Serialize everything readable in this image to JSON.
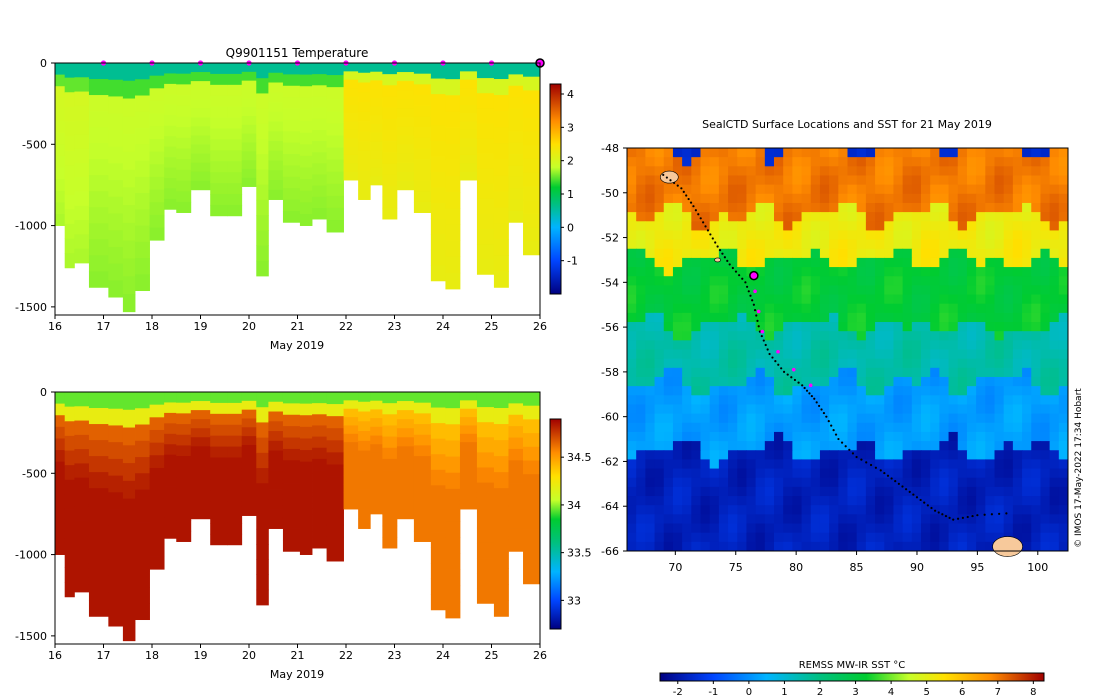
{
  "colors": {
    "frame": "#000000",
    "profile_marker": "#ff00ff",
    "current_marker_fill": "#ff00ff",
    "current_marker_stroke": "#000000",
    "land": "#f7c99b"
  },
  "chart_data": [
    {
      "id": "temperature",
      "type": "heatmap",
      "title": "Q9901151  Temperature",
      "xlabel": "May 2019",
      "ylabel": "",
      "xlim": [
        16,
        26
      ],
      "ylim": [
        -1550,
        0
      ],
      "x_ticks": [
        "16",
        "17",
        "18",
        "19",
        "20",
        "21",
        "22",
        "23",
        "24",
        "25",
        "26"
      ],
      "y_ticks": [
        "0",
        "-500",
        "-1000",
        "-1500"
      ],
      "y_tick_values": [
        0,
        -500,
        -1000,
        -1500
      ],
      "colorbar": {
        "min": -2,
        "max": 4.3,
        "ticks": [
          "4",
          "3",
          "2",
          "1",
          "0",
          "-1"
        ],
        "tick_values": [
          4,
          3,
          2,
          1,
          0,
          -1
        ],
        "stops": [
          {
            "v": -2.0,
            "c": "#000080"
          },
          {
            "v": -1.0,
            "c": "#0045ff"
          },
          {
            "v": 0.0,
            "c": "#00b4ff"
          },
          {
            "v": 0.7,
            "c": "#00c080"
          },
          {
            "v": 1.2,
            "c": "#00cc30"
          },
          {
            "v": 1.8,
            "c": "#c6ff2a"
          },
          {
            "v": 2.5,
            "c": "#ffe000"
          },
          {
            "v": 3.2,
            "c": "#ff8c00"
          },
          {
            "v": 4.3,
            "c": "#a00000"
          }
        ]
      },
      "profile_days": [
        17,
        18,
        19,
        20,
        21,
        22,
        23,
        24,
        25
      ],
      "current_day": 26,
      "surface_value": 0.6,
      "profiles": [
        {
          "day": 16.1,
          "depth": 1000,
          "value": 2.0
        },
        {
          "day": 16.3,
          "depth": 1260,
          "value": 2.0
        },
        {
          "day": 16.5,
          "depth": 1230,
          "value": 2.0
        },
        {
          "day": 16.9,
          "depth": 1380,
          "value": 1.9
        },
        {
          "day": 17.3,
          "depth": 1440,
          "value": 1.9
        },
        {
          "day": 17.5,
          "depth": 1530,
          "value": 1.9
        },
        {
          "day": 17.8,
          "depth": 1400,
          "value": 1.9
        },
        {
          "day": 18.1,
          "depth": 1090,
          "value": 1.9
        },
        {
          "day": 18.4,
          "depth": 900,
          "value": 1.9
        },
        {
          "day": 18.6,
          "depth": 920,
          "value": 1.9
        },
        {
          "day": 19.0,
          "depth": 780,
          "value": 1.9
        },
        {
          "day": 19.4,
          "depth": 940,
          "value": 1.9
        },
        {
          "day": 19.7,
          "depth": 940,
          "value": 1.9
        },
        {
          "day": 20.0,
          "depth": 760,
          "value": 1.9
        },
        {
          "day": 20.3,
          "depth": 1310,
          "value": 1.9
        },
        {
          "day": 20.5,
          "depth": 840,
          "value": 1.9
        },
        {
          "day": 20.9,
          "depth": 980,
          "value": 1.9
        },
        {
          "day": 21.2,
          "depth": 1000,
          "value": 1.9
        },
        {
          "day": 21.4,
          "depth": 960,
          "value": 1.9
        },
        {
          "day": 21.8,
          "depth": 1040,
          "value": 1.9
        },
        {
          "day": 22.1,
          "depth": 720,
          "value": 2.5
        },
        {
          "day": 22.4,
          "depth": 840,
          "value": 2.5
        },
        {
          "day": 22.6,
          "depth": 750,
          "value": 2.5
        },
        {
          "day": 22.9,
          "depth": 960,
          "value": 2.5
        },
        {
          "day": 23.2,
          "depth": 780,
          "value": 2.5
        },
        {
          "day": 23.6,
          "depth": 920,
          "value": 2.5
        },
        {
          "day": 23.9,
          "depth": 1340,
          "value": 2.5
        },
        {
          "day": 24.2,
          "depth": 1390,
          "value": 2.5
        },
        {
          "day": 24.5,
          "depth": 720,
          "value": 2.5
        },
        {
          "day": 24.9,
          "depth": 1300,
          "value": 2.5
        },
        {
          "day": 25.2,
          "depth": 1380,
          "value": 2.5
        },
        {
          "day": 25.5,
          "depth": 980,
          "value": 2.5
        },
        {
          "day": 25.8,
          "depth": 1180,
          "value": 2.5
        }
      ]
    },
    {
      "id": "salinity",
      "type": "heatmap",
      "title": "",
      "xlabel": "May 2019",
      "ylabel": "",
      "xlim": [
        16,
        26
      ],
      "ylim": [
        -1550,
        0
      ],
      "x_ticks": [
        "16",
        "17",
        "18",
        "19",
        "20",
        "21",
        "22",
        "23",
        "24",
        "25",
        "26"
      ],
      "y_ticks": [
        "0",
        "-500",
        "-1000",
        "-1500"
      ],
      "y_tick_values": [
        0,
        -500,
        -1000,
        -1500
      ],
      "colorbar": {
        "min": 32.7,
        "max": 34.9,
        "ticks": [
          "34.5",
          "34",
          "33.5",
          "33"
        ],
        "tick_values": [
          34.5,
          34,
          33.5,
          33
        ],
        "stops": [
          {
            "v": 32.7,
            "c": "#000080"
          },
          {
            "v": 33.0,
            "c": "#0045ff"
          },
          {
            "v": 33.3,
            "c": "#00b4ff"
          },
          {
            "v": 33.6,
            "c": "#00c080"
          },
          {
            "v": 33.85,
            "c": "#00cc30"
          },
          {
            "v": 34.05,
            "c": "#c6ff2a"
          },
          {
            "v": 34.3,
            "c": "#ffe000"
          },
          {
            "v": 34.55,
            "c": "#ff8c00"
          },
          {
            "v": 34.9,
            "c": "#a00000"
          }
        ]
      },
      "surface_value": 33.85,
      "deep_value_early": 34.85,
      "deep_value_late": 34.6
    },
    {
      "id": "sst-map",
      "type": "heatmap",
      "title": "SealCTD Surface Locations and SST for 21 May 2019",
      "xlabel": "",
      "ylabel": "",
      "xlim": [
        66,
        102.5
      ],
      "ylim": [
        -66,
        -48
      ],
      "x_ticks": [
        "70",
        "75",
        "80",
        "85",
        "90",
        "95",
        "100"
      ],
      "x_tick_values": [
        70,
        75,
        80,
        85,
        90,
        95,
        100
      ],
      "y_ticks": [
        "-48",
        "-50",
        "-52",
        "-54",
        "-56",
        "-58",
        "-60",
        "-62",
        "-64",
        "-66"
      ],
      "y_tick_values": [
        -48,
        -50,
        -52,
        -54,
        -56,
        -58,
        -60,
        -62,
        -64,
        -66
      ],
      "colorbar": {
        "label": "REMSS MW-IR SST °C",
        "min": -2.5,
        "max": 8.3,
        "ticks": [
          "-2",
          "-1",
          "0",
          "1",
          "2",
          "3",
          "4",
          "5",
          "6",
          "7",
          "8"
        ],
        "tick_values": [
          -2,
          -1,
          0,
          1,
          2,
          3,
          4,
          5,
          6,
          7,
          8
        ],
        "stops": [
          {
            "v": -2.5,
            "c": "#000080"
          },
          {
            "v": -1.0,
            "c": "#0045ff"
          },
          {
            "v": 0.5,
            "c": "#00b4ff"
          },
          {
            "v": 2.0,
            "c": "#00c080"
          },
          {
            "v": 3.3,
            "c": "#00cc30"
          },
          {
            "v": 4.5,
            "c": "#c6ff2a"
          },
          {
            "v": 5.5,
            "c": "#ffe000"
          },
          {
            "v": 6.8,
            "c": "#ff8c00"
          },
          {
            "v": 8.3,
            "c": "#a00000"
          }
        ]
      },
      "sst_bands": [
        {
          "lat_from": -48,
          "lat_to": -51,
          "value": 7.0
        },
        {
          "lat_from": -51,
          "lat_to": -53,
          "value": 5.2
        },
        {
          "lat_from": -53,
          "lat_to": -56,
          "value": 3.2
        },
        {
          "lat_from": -56,
          "lat_to": -58.5,
          "value": 1.5
        },
        {
          "lat_from": -58.5,
          "lat_to": -61.5,
          "value": 0.2
        },
        {
          "lat_from": -61.5,
          "lat_to": -66,
          "value": -1.8
        }
      ],
      "track": [
        {
          "lon": 69.0,
          "lat": -49.2
        },
        {
          "lon": 70.5,
          "lat": -49.8
        },
        {
          "lon": 71.5,
          "lat": -50.6
        },
        {
          "lon": 72.5,
          "lat": -51.5
        },
        {
          "lon": 73.5,
          "lat": -52.4
        },
        {
          "lon": 74.5,
          "lat": -53.2
        },
        {
          "lon": 75.8,
          "lat": -54.0
        },
        {
          "lon": 76.5,
          "lat": -55.0
        },
        {
          "lon": 77.0,
          "lat": -56.2
        },
        {
          "lon": 77.8,
          "lat": -57.2
        },
        {
          "lon": 79.0,
          "lat": -58.0
        },
        {
          "lon": 80.5,
          "lat": -58.6
        },
        {
          "lon": 81.5,
          "lat": -59.2
        },
        {
          "lon": 82.5,
          "lat": -60.0
        },
        {
          "lon": 83.5,
          "lat": -61.0
        },
        {
          "lon": 85.0,
          "lat": -61.8
        },
        {
          "lon": 87.0,
          "lat": -62.4
        },
        {
          "lon": 88.5,
          "lat": -63.0
        },
        {
          "lon": 90.0,
          "lat": -63.6
        },
        {
          "lon": 91.5,
          "lat": -64.2
        },
        {
          "lon": 93.0,
          "lat": -64.6
        },
        {
          "lon": 95.0,
          "lat": -64.4
        },
        {
          "lon": 98.0,
          "lat": -64.3
        }
      ],
      "recent_positions": [
        {
          "lon": 76.6,
          "lat": -54.4
        },
        {
          "lon": 76.9,
          "lat": -55.3
        },
        {
          "lon": 77.2,
          "lat": -56.2
        },
        {
          "lon": 78.5,
          "lat": -57.1
        },
        {
          "lon": 79.8,
          "lat": -57.9
        },
        {
          "lon": 81.2,
          "lat": -58.6
        }
      ],
      "current_position": {
        "lon": 76.5,
        "lat": -53.7
      },
      "land": [
        {
          "lon": 69.5,
          "lat": -49.3,
          "size": 1.5
        },
        {
          "lon": 73.5,
          "lat": -53.0,
          "size": 0.5
        },
        {
          "lon": 97.5,
          "lat": -65.8,
          "size": 2.5
        }
      ],
      "side_credit": "© IMOS 17-May-2022 17:34 Hobart"
    }
  ]
}
